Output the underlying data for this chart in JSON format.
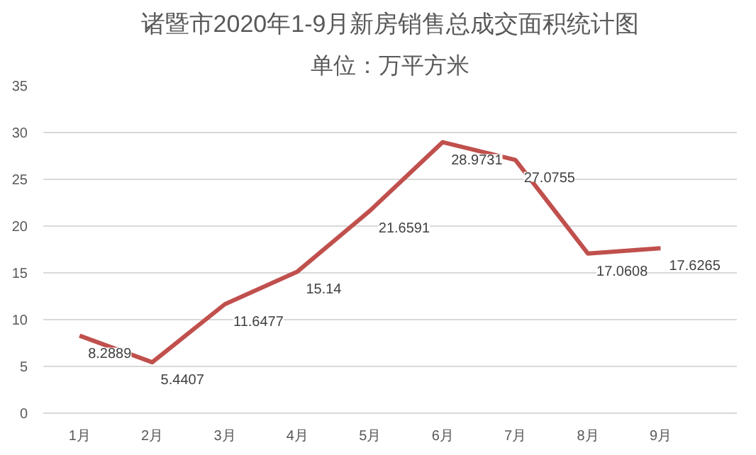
{
  "chart_data": {
    "type": "line",
    "title": "诸暨市2020年1-9月新房销售总成交面积统计图",
    "subtitle": "单位：万平方米",
    "categories": [
      "1月",
      "2月",
      "3月",
      "4月",
      "5月",
      "6月",
      "7月",
      "8月",
      "9月"
    ],
    "series": [
      {
        "color": "#c0504d",
        "values": [
          8.2889,
          5.4407,
          11.6477,
          15.14,
          21.6591,
          28.9731,
          27.0755,
          17.0608,
          17.6265
        ]
      }
    ],
    "ylim": [
      0,
      35
    ],
    "yticks": [
      0,
      5,
      10,
      15,
      20,
      25,
      30,
      35
    ],
    "grid": "y",
    "data_labels": true,
    "marker": "none",
    "line_style": "solid"
  }
}
